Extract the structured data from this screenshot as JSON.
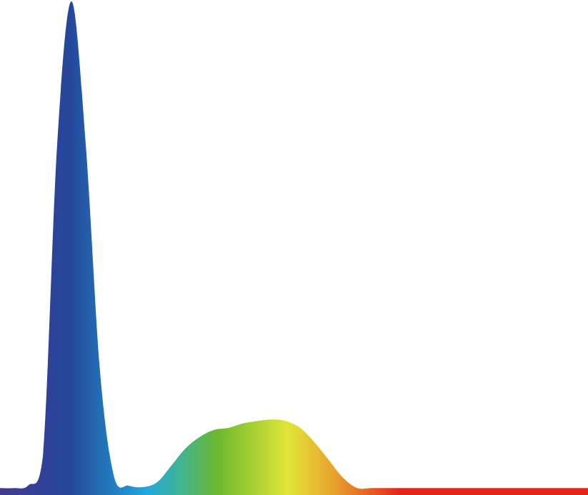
{
  "chart_data": {
    "type": "area",
    "title": "",
    "xlabel": "",
    "ylabel": "",
    "grid": false,
    "legend": "none",
    "ylim": [
      0,
      100
    ],
    "series": [
      {
        "values": [
          1.4,
          1.4,
          2,
          7.8,
          71,
          100,
          71,
          25,
          3.5,
          1.9,
          1.6,
          2.6,
          6,
          9.5,
          11.8,
          13.2,
          13.6,
          14.5,
          15,
          15.3,
          15,
          13.6,
          10.7,
          7.1,
          3.5,
          1.4,
          1.4,
          1.4,
          1.4,
          1.4,
          1.4,
          1.4,
          1.4,
          1.4,
          1.4,
          1.4,
          1.4,
          1.4,
          1.4,
          1.4,
          1.4,
          1.4
        ]
      }
    ],
    "fill_gradient": [
      {
        "stop": 0.0,
        "color": "#433a91"
      },
      {
        "stop": 0.12,
        "color": "#24479b"
      },
      {
        "stop": 0.25,
        "color": "#22a8dc"
      },
      {
        "stop": 0.3,
        "color": "#3cb39a"
      },
      {
        "stop": 0.37,
        "color": "#6cb92f"
      },
      {
        "stop": 0.49,
        "color": "#e2e53a"
      },
      {
        "stop": 0.57,
        "color": "#e8a02e"
      },
      {
        "stop": 0.68,
        "color": "#e2261a"
      },
      {
        "stop": 1.0,
        "color": "#e2261a"
      }
    ]
  }
}
